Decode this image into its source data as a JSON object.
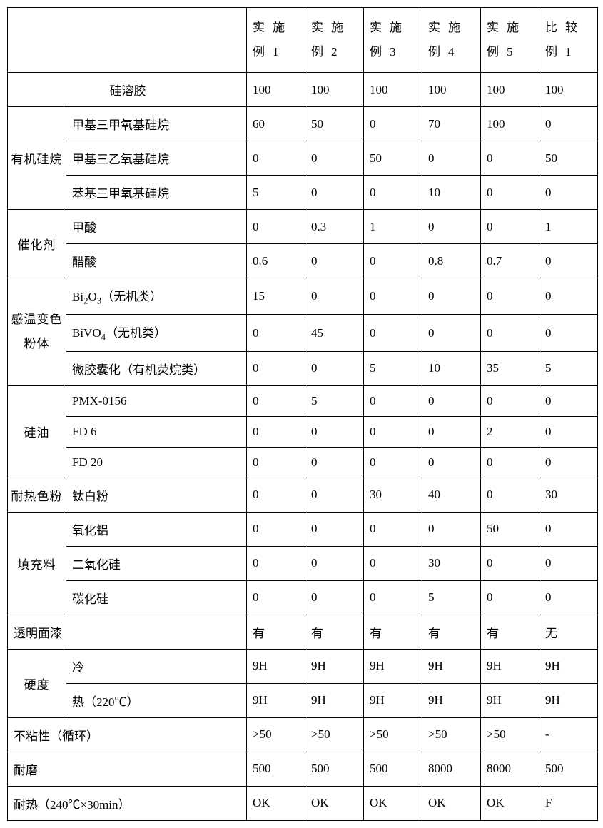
{
  "columns": [
    "实施例1",
    "实施例2",
    "实施例3",
    "实施例4",
    "实施例5",
    "比较例1"
  ],
  "rows": {
    "r1_label": "硅溶胶",
    "r1": [
      "100",
      "100",
      "100",
      "100",
      "100",
      "100"
    ],
    "g2_label": "有机硅烷",
    "r2a_label": "甲基三甲氧基硅烷",
    "r2a": [
      "60",
      "50",
      "0",
      "70",
      "100",
      "0"
    ],
    "r2b_label": "甲基三乙氧基硅烷",
    "r2b": [
      "0",
      "0",
      "50",
      "0",
      "0",
      "50"
    ],
    "r2c_label": "苯基三甲氧基硅烷",
    "r2c": [
      "5",
      "0",
      "0",
      "10",
      "0",
      "0"
    ],
    "g3_label": "催化剂",
    "r3a_label": "甲酸",
    "r3a": [
      "0",
      "0.3",
      "1",
      "0",
      "0",
      "1"
    ],
    "r3b_label": "醋酸",
    "r3b": [
      "0.6",
      "0",
      "0",
      "0.8",
      "0.7",
      "0"
    ],
    "g4_label": "感温变色粉体",
    "r4a": [
      "15",
      "0",
      "0",
      "0",
      "0",
      "0"
    ],
    "r4b": [
      "0",
      "45",
      "0",
      "0",
      "0",
      "0"
    ],
    "r4c_label": "微胶囊化（有机荧烷类）",
    "r4c": [
      "0",
      "0",
      "5",
      "10",
      "35",
      "5"
    ],
    "g5_label": "硅油",
    "r5a_label": "PMX-0156",
    "r5a": [
      "0",
      "5",
      "0",
      "0",
      "0",
      "0"
    ],
    "r5b_label": "FD 6",
    "r5b": [
      "0",
      "0",
      "0",
      "0",
      "2",
      "0"
    ],
    "r5c_label": "FD 20",
    "r5c": [
      "0",
      "0",
      "0",
      "0",
      "0",
      "0"
    ],
    "r6_cat": "耐热色粉",
    "r6_label": "钛白粉",
    "r6": [
      "0",
      "0",
      "30",
      "40",
      "0",
      "30"
    ],
    "g7_label": "填充料",
    "r7a_label": "氧化铝",
    "r7a": [
      "0",
      "0",
      "0",
      "0",
      "50",
      "0"
    ],
    "r7b_label": "二氧化硅",
    "r7b": [
      "0",
      "0",
      "0",
      "30",
      "0",
      "0"
    ],
    "r7c_label": "碳化硅",
    "r7c": [
      "0",
      "0",
      "0",
      "5",
      "0",
      "0"
    ],
    "r8_label": "透明面漆",
    "r8": [
      "有",
      "有",
      "有",
      "有",
      "有",
      "无"
    ],
    "g9_label": "硬度",
    "r9a_label": "冷",
    "r9a": [
      "9H",
      "9H",
      "9H",
      "9H",
      "9H",
      "9H"
    ],
    "r9b_label": "热（220℃）",
    "r9b": [
      "9H",
      "9H",
      "9H",
      "9H",
      "9H",
      "9H"
    ],
    "r10_label": "不粘性（循环）",
    "r10": [
      ">50",
      ">50",
      ">50",
      ">50",
      ">50",
      "-"
    ],
    "r11_label": "耐磨",
    "r11": [
      "500",
      "500",
      "500",
      "8000",
      "8000",
      "500"
    ],
    "r12_label": "耐热（240℃×30min）",
    "r12": [
      "OK",
      "OK",
      "OK",
      "OK",
      "OK",
      "F"
    ]
  },
  "special": {
    "bi2o3": "Bi<sub>2</sub>O<sub>3</sub>（无机类）",
    "bivo4": "BiVO<sub>4</sub>（无机类）"
  }
}
